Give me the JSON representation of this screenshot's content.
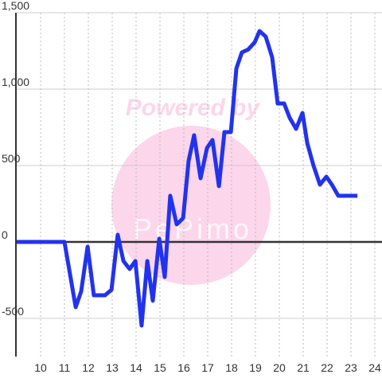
{
  "chart_data": {
    "type": "line",
    "watermark": [
      "Powered by",
      "PePimo"
    ],
    "x": [
      9,
      11,
      11.47,
      11.7,
      11.97,
      12.23,
      12.7,
      12.97,
      13.23,
      13.47,
      13.73,
      13.97,
      14.23,
      14.47,
      14.7,
      14.97,
      15.2,
      15.43,
      15.7,
      15.97,
      16.2,
      16.43,
      16.7,
      16.97,
      17.2,
      17.47,
      17.7,
      17.97,
      18.2,
      18.43,
      18.7,
      18.97,
      19.17,
      19.43,
      19.7,
      19.93,
      20.2,
      20.43,
      20.7,
      20.97,
      21.17,
      21.43,
      21.7,
      21.97,
      22.2,
      22.47,
      23.27
    ],
    "series": [
      {
        "color": "#2233ee",
        "values": [
          0,
          0,
          -427,
          -323,
          -31,
          -349,
          -349,
          -313,
          47,
          -125,
          -177,
          -125,
          -547,
          -125,
          -385,
          21,
          -229,
          302,
          115,
          156,
          531,
          698,
          417,
          615,
          667,
          365,
          719,
          719,
          1135,
          1240,
          1260,
          1307,
          1380,
          1344,
          1208,
          906,
          906,
          813,
          740,
          844,
          646,
          500,
          375,
          427,
          375,
          302,
          302
        ]
      }
    ],
    "xlim": [
      9,
      24.3
    ],
    "ylim": [
      -750,
      1500
    ],
    "xticks": [
      10,
      11,
      12,
      13,
      14,
      15,
      16,
      17,
      18,
      19,
      20,
      21,
      22,
      23,
      24
    ],
    "yticks": [
      {
        "value": -500,
        "label": "-500"
      },
      0,
      500,
      {
        "value": 1000,
        "label": "1,000"
      },
      {
        "value": 1500,
        "label": "1,500"
      }
    ],
    "grid": true
  }
}
